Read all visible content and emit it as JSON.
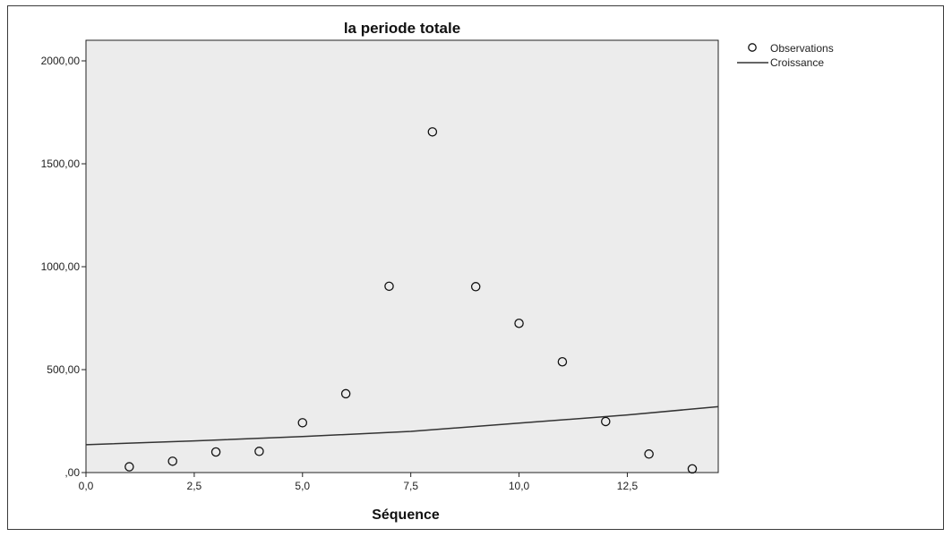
{
  "chart_data": {
    "type": "scatter",
    "title": "la periode totale",
    "xlabel": "Séquence",
    "ylabel": "",
    "xlim": [
      0,
      14.6
    ],
    "ylim": [
      0,
      2100
    ],
    "xticks": [
      "0,0",
      "2,5",
      "5,0",
      "7,5",
      "10,0",
      "12,5"
    ],
    "xtick_values": [
      0,
      2.5,
      5,
      7.5,
      10,
      12.5
    ],
    "yticks": [
      ",00",
      "500,00",
      "1000,00",
      "1500,00",
      "2000,00"
    ],
    "ytick_values": [
      0,
      500,
      1000,
      1500,
      2000
    ],
    "grid": false,
    "legend_position": "top-right",
    "series": [
      {
        "name": "Observations",
        "kind": "points",
        "x": [
          1,
          2,
          3,
          4,
          5,
          6,
          7,
          8,
          9,
          10,
          11,
          12,
          13,
          14
        ],
        "y": [
          28,
          55,
          100,
          103,
          242,
          383,
          905,
          1655,
          903,
          725,
          538,
          248,
          90,
          18
        ]
      },
      {
        "name": "Croissance",
        "kind": "line",
        "model": "exponential",
        "x": [
          0,
          2.5,
          5,
          7.5,
          10,
          12.5,
          14.6
        ],
        "y": [
          135,
          154,
          175,
          200,
          240,
          280,
          320
        ]
      }
    ]
  },
  "colors": {
    "plot_background": "#ececec",
    "marker_stroke": "#111111",
    "line": "#333333"
  }
}
